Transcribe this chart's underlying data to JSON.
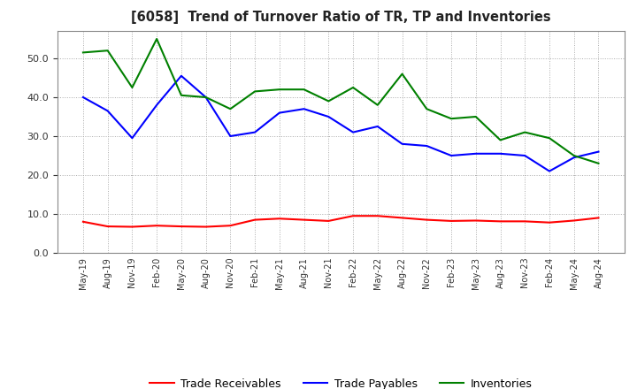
{
  "title": "[6058]  Trend of Turnover Ratio of TR, TP and Inventories",
  "x_labels": [
    "May-19",
    "Aug-19",
    "Nov-19",
    "Feb-20",
    "May-20",
    "Aug-20",
    "Nov-20",
    "Feb-21",
    "May-21",
    "Aug-21",
    "Nov-21",
    "Feb-22",
    "May-22",
    "Aug-22",
    "Nov-22",
    "Feb-23",
    "May-23",
    "Aug-23",
    "Nov-23",
    "Feb-24",
    "May-24",
    "Aug-24"
  ],
  "trade_receivables": [
    8.0,
    6.8,
    6.7,
    7.0,
    6.8,
    6.7,
    7.0,
    8.5,
    8.8,
    8.5,
    8.2,
    9.5,
    9.5,
    9.0,
    8.5,
    8.2,
    8.3,
    8.1,
    8.1,
    7.8,
    8.3,
    9.0
  ],
  "trade_payables": [
    40.0,
    36.5,
    29.5,
    38.0,
    45.5,
    40.0,
    30.0,
    31.0,
    36.0,
    37.0,
    35.0,
    31.0,
    32.5,
    28.0,
    27.5,
    25.0,
    25.5,
    25.5,
    25.0,
    21.0,
    24.5,
    26.0
  ],
  "inventories": [
    51.5,
    52.0,
    42.5,
    55.0,
    40.5,
    40.0,
    37.0,
    41.5,
    42.0,
    42.0,
    39.0,
    42.5,
    38.0,
    46.0,
    37.0,
    34.5,
    35.0,
    29.0,
    31.0,
    29.5,
    25.0,
    23.0
  ],
  "tr_color": "#ff0000",
  "tp_color": "#0000ff",
  "inv_color": "#008000",
  "ylim": [
    0.0,
    57.0
  ],
  "yticks": [
    0.0,
    10.0,
    20.0,
    30.0,
    40.0,
    50.0
  ],
  "background_color": "#ffffff",
  "grid_color": "#aaaaaa",
  "legend_labels": [
    "Trade Receivables",
    "Trade Payables",
    "Inventories"
  ]
}
